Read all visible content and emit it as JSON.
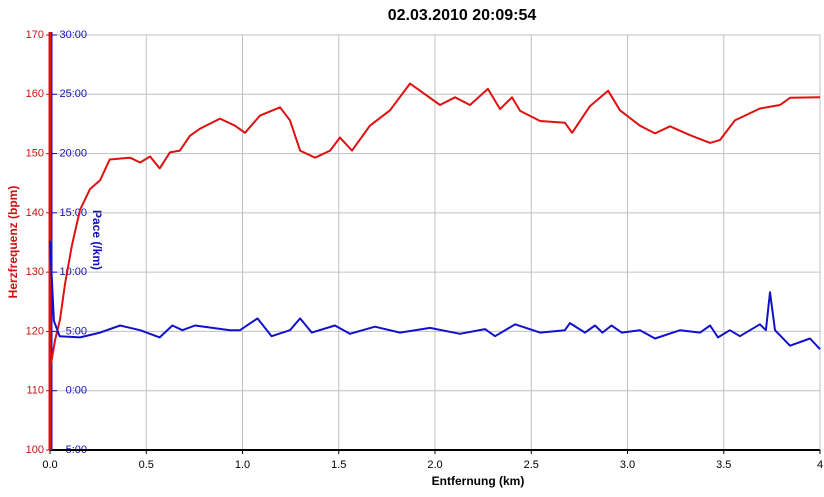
{
  "chart_data": {
    "type": "line",
    "title": "02.03.2010 20:09:54",
    "xlabel": "Entfernung (km)",
    "ylabel": "Herzfrequenz (bpm)",
    "y2label": "Pace (/km)",
    "xlim": [
      0,
      4
    ],
    "ylim": [
      100,
      170
    ],
    "y2lim": [
      -5,
      30
    ],
    "xticks": [
      {
        "value": 0,
        "label": "0.0"
      },
      0.5,
      {
        "value": 1,
        "label": "1.0"
      },
      1.5,
      {
        "value": 2,
        "label": "2.0"
      },
      2.5,
      {
        "value": 3,
        "label": "3.0"
      },
      3.5,
      4
    ],
    "yticks": [
      100,
      110,
      120,
      130,
      140,
      150,
      160,
      170
    ],
    "y2ticks": [
      {
        "value": -5,
        "label": "-5:00"
      },
      {
        "value": 0,
        "label": "0:00"
      },
      {
        "value": 5,
        "label": "5:00"
      },
      {
        "value": 10,
        "label": "10:00"
      },
      {
        "value": 15,
        "label": "15:00"
      },
      {
        "value": 20,
        "label": "20:00"
      },
      {
        "value": 25,
        "label": "25:00"
      },
      {
        "value": 30,
        "label": "30:00"
      }
    ],
    "grid": true,
    "series": [
      {
        "color": "#dd1111",
        "x": [
          0,
          0.026,
          0.052,
          0.078,
          0.114,
          0.156,
          0.208,
          0.26,
          0.31,
          0.416,
          0.468,
          0.52,
          0.57,
          0.623,
          0.675,
          0.727,
          0.779,
          0.883,
          0.961,
          1.013,
          1.091,
          1.195,
          1.247,
          1.299,
          1.377,
          1.455,
          1.506,
          1.569,
          1.662,
          1.766,
          1.87,
          1.922,
          2.026,
          2.104,
          2.182,
          2.275,
          2.338,
          2.4,
          2.442,
          2.546,
          2.675,
          2.712,
          2.805,
          2.899,
          2.961,
          3.065,
          3.143,
          3.221,
          3.325,
          3.429,
          3.481,
          3.558,
          3.688,
          3.792,
          3.844,
          4
        ],
        "values": [
          113.5,
          118.5,
          122,
          128,
          134.5,
          140.5,
          144,
          145.5,
          149,
          149.3,
          148.5,
          149.5,
          147.5,
          150.2,
          150.5,
          153,
          154.2,
          155.9,
          154.7,
          153.5,
          156.4,
          157.8,
          155.6,
          150.5,
          149.3,
          150.5,
          152.7,
          150.5,
          154.7,
          157.3,
          161.8,
          160.6,
          158.2,
          159.5,
          158.2,
          160.9,
          157.5,
          159.5,
          157.2,
          155.5,
          155.2,
          153.5,
          158,
          160.6,
          157.3,
          154.7,
          153.4,
          154.6,
          153.1,
          151.8,
          152.3,
          155.6,
          157.6,
          158.2,
          159.4,
          159.5
        ]
      },
      {
        "color": "#1111cc",
        "axis": "y2",
        "x": [
          0,
          0.02,
          0.05,
          0.156,
          0.26,
          0.364,
          0.468,
          0.57,
          0.636,
          0.688,
          0.753,
          0.935,
          0.987,
          1.078,
          1.151,
          1.247,
          1.299,
          1.36,
          1.48,
          1.558,
          1.688,
          1.818,
          1.974,
          2.13,
          2.26,
          2.312,
          2.416,
          2.546,
          2.675,
          2.701,
          2.779,
          2.831,
          2.87,
          2.917,
          2.97,
          3.065,
          3.143,
          3.273,
          3.377,
          3.429,
          3.47,
          3.532,
          3.584,
          3.688,
          3.719,
          3.74,
          3.766,
          3.844,
          3.948,
          4
        ],
        "values": [
          12.6,
          5.9,
          4.6,
          4.5,
          4.9,
          5.5,
          5.1,
          4.5,
          5.5,
          5.1,
          5.5,
          5.1,
          5.1,
          6.1,
          4.6,
          5.1,
          6.1,
          4.9,
          5.5,
          4.8,
          5.4,
          4.9,
          5.3,
          4.8,
          5.2,
          4.6,
          5.6,
          4.9,
          5.1,
          5.7,
          4.9,
          5.5,
          4.9,
          5.5,
          4.9,
          5.1,
          4.4,
          5.1,
          4.9,
          5.5,
          4.5,
          5.1,
          4.6,
          5.6,
          5.1,
          8.3,
          5.1,
          3.8,
          4.4,
          3.5
        ]
      }
    ]
  }
}
